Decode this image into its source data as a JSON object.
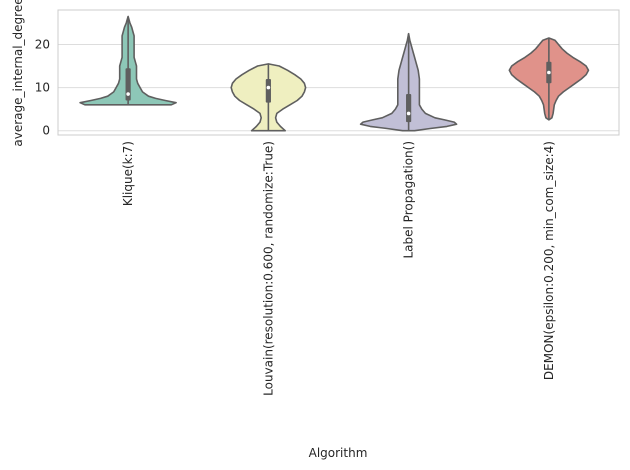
{
  "chart_data": {
    "type": "violin",
    "title": "",
    "xlabel": "Algorithm",
    "ylabel": "average_internal_degree",
    "ylim": [
      -1,
      28
    ],
    "yticks": [
      0,
      10,
      20
    ],
    "grid": true,
    "categories": [
      "Klique(k:7)",
      "Louvain(resolution:0.600, randomize:True)",
      "Label Propagation()",
      "DEMON(epsilon:0.200, min_com_size:4)"
    ],
    "colors": [
      "#8dc7b7",
      "#efefc0",
      "#c1bfd6",
      "#e0928a"
    ],
    "violins": [
      {
        "category": "Klique(k:7)",
        "min": 6.0,
        "q1": 7.0,
        "median": 8.5,
        "q3": 14.5,
        "max": 26.5,
        "density": [
          [
            6.0,
            0.36
          ],
          [
            6.5,
            0.4
          ],
          [
            7.0,
            0.31
          ],
          [
            7.5,
            0.23
          ],
          [
            8.0,
            0.17
          ],
          [
            9.0,
            0.12
          ],
          [
            10.0,
            0.1
          ],
          [
            11.0,
            0.08
          ],
          [
            12.0,
            0.07
          ],
          [
            13.0,
            0.07
          ],
          [
            14.0,
            0.07
          ],
          [
            15.0,
            0.07
          ],
          [
            16.0,
            0.06
          ],
          [
            17.0,
            0.05
          ],
          [
            18.0,
            0.05
          ],
          [
            19.0,
            0.05
          ],
          [
            20.0,
            0.05
          ],
          [
            21.0,
            0.05
          ],
          [
            22.0,
            0.05
          ],
          [
            23.0,
            0.04
          ],
          [
            24.0,
            0.03
          ],
          [
            25.0,
            0.015
          ],
          [
            26.5,
            0.0
          ]
        ]
      },
      {
        "category": "Louvain(resolution:0.600, randomize:True)",
        "min": 0.0,
        "q1": 6.5,
        "median": 10.0,
        "q3": 12.0,
        "max": 15.5,
        "density": [
          [
            0.0,
            0.14
          ],
          [
            1.0,
            0.1
          ],
          [
            2.0,
            0.07
          ],
          [
            3.0,
            0.06
          ],
          [
            4.0,
            0.07
          ],
          [
            5.0,
            0.12
          ],
          [
            6.0,
            0.18
          ],
          [
            7.0,
            0.24
          ],
          [
            8.0,
            0.28
          ],
          [
            9.0,
            0.3
          ],
          [
            10.0,
            0.31
          ],
          [
            11.0,
            0.3
          ],
          [
            12.0,
            0.27
          ],
          [
            13.0,
            0.22
          ],
          [
            14.0,
            0.16
          ],
          [
            15.0,
            0.09
          ],
          [
            15.5,
            0.0
          ]
        ]
      },
      {
        "category": "Label Propagation()",
        "min": 0.0,
        "q1": 2.0,
        "median": 4.0,
        "q3": 8.5,
        "max": 22.5,
        "density": [
          [
            0.0,
            0.05
          ],
          [
            0.5,
            0.18
          ],
          [
            1.0,
            0.32
          ],
          [
            1.5,
            0.4
          ],
          [
            2.0,
            0.38
          ],
          [
            2.5,
            0.3
          ],
          [
            3.0,
            0.22
          ],
          [
            4.0,
            0.14
          ],
          [
            5.0,
            0.11
          ],
          [
            6.0,
            0.09
          ],
          [
            7.0,
            0.09
          ],
          [
            8.0,
            0.09
          ],
          [
            9.0,
            0.09
          ],
          [
            10.0,
            0.09
          ],
          [
            11.0,
            0.09
          ],
          [
            12.0,
            0.09
          ],
          [
            13.0,
            0.085
          ],
          [
            14.0,
            0.08
          ],
          [
            15.0,
            0.07
          ],
          [
            16.0,
            0.06
          ],
          [
            17.0,
            0.05
          ],
          [
            18.0,
            0.04
          ],
          [
            19.0,
            0.03
          ],
          [
            20.0,
            0.02
          ],
          [
            21.0,
            0.01
          ],
          [
            22.5,
            0.0
          ]
        ]
      },
      {
        "category": "DEMON(epsilon:0.200, min_com_size:4)",
        "min": 2.5,
        "q1": 11.0,
        "median": 13.5,
        "q3": 16.0,
        "max": 21.5,
        "density": [
          [
            2.5,
            0.0
          ],
          [
            3.0,
            0.025
          ],
          [
            4.0,
            0.035
          ],
          [
            5.0,
            0.04
          ],
          [
            6.0,
            0.045
          ],
          [
            7.0,
            0.06
          ],
          [
            8.0,
            0.08
          ],
          [
            9.0,
            0.12
          ],
          [
            10.0,
            0.17
          ],
          [
            11.0,
            0.22
          ],
          [
            12.0,
            0.27
          ],
          [
            13.0,
            0.31
          ],
          [
            14.0,
            0.33
          ],
          [
            15.0,
            0.31
          ],
          [
            16.0,
            0.26
          ],
          [
            17.0,
            0.2
          ],
          [
            18.0,
            0.15
          ],
          [
            19.0,
            0.11
          ],
          [
            20.0,
            0.08
          ],
          [
            21.0,
            0.05
          ],
          [
            21.5,
            0.0
          ]
        ]
      }
    ]
  }
}
